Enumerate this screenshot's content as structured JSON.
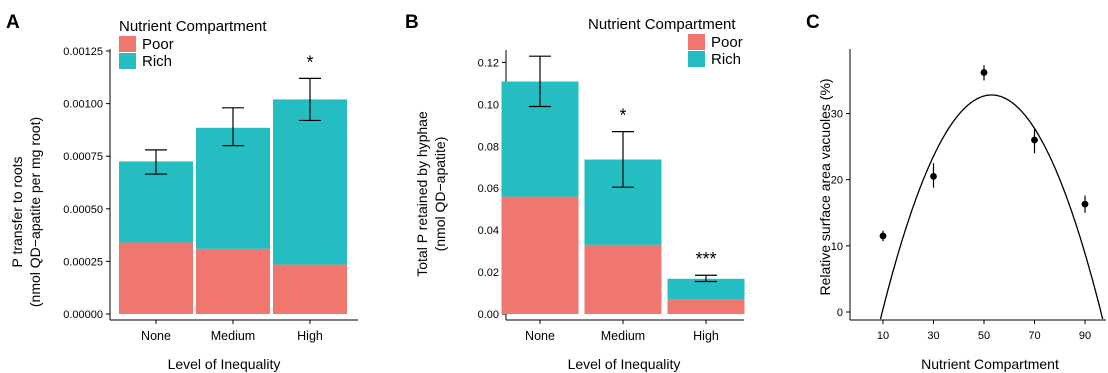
{
  "colors": {
    "poor": "#F07670",
    "rich": "#24BDC1",
    "axis": "#000000",
    "error": "#000000"
  },
  "panel_labels": [
    "A",
    "B",
    "C"
  ],
  "chart_data": [
    {
      "panel": "A",
      "type": "bar",
      "stacked": true,
      "categories": [
        "None",
        "Medium",
        "High"
      ],
      "series": [
        {
          "name": "Poor",
          "values": [
            0.00034,
            0.00031,
            0.000235
          ]
        },
        {
          "name": "Rich",
          "values": [
            0.000385,
            0.000575,
            0.000785
          ]
        }
      ],
      "totals": [
        0.000725,
        0.000885,
        0.00102
      ],
      "error_bars": [
        [
          0.000665,
          0.00078
        ],
        [
          0.0008,
          0.00098
        ],
        [
          0.00092,
          0.00112
        ]
      ],
      "significance": [
        "",
        "",
        "*"
      ],
      "legend_title": "Nutrient Compartment",
      "legend_items": [
        "Poor",
        "Rich"
      ],
      "legend_position": "top-left",
      "ylabel_lines": [
        "P transfer to roots",
        "(nmol QD−apatite per mg root)"
      ],
      "xlabel": "Level of Inequality",
      "yticks": [
        0,
        0.00025,
        0.0005,
        0.00075,
        0.001,
        0.00125
      ],
      "ytick_labels": [
        "0.00000",
        "0.00025",
        "0.00050",
        "0.00075",
        "0.00100",
        "0.00125"
      ],
      "ylim": [
        0,
        0.00125
      ]
    },
    {
      "panel": "B",
      "type": "bar",
      "stacked": true,
      "categories": [
        "None",
        "Medium",
        "High"
      ],
      "series": [
        {
          "name": "Poor",
          "values": [
            0.056,
            0.033,
            0.007
          ]
        },
        {
          "name": "Rich",
          "values": [
            0.0549,
            0.0407,
            0.0098
          ]
        }
      ],
      "totals": [
        0.1109,
        0.0737,
        0.0168
      ],
      "error_bars": [
        [
          0.099,
          0.123
        ],
        [
          0.0605,
          0.087
        ],
        [
          0.0155,
          0.0185
        ]
      ],
      "significance": [
        "",
        "*",
        "***"
      ],
      "legend_title": "Nutrient Compartment",
      "legend_items": [
        "Poor",
        "Rich"
      ],
      "legend_position": "top-right",
      "ylabel_lines": [
        "Total P retained by hyphae",
        "(nmol QD−apatite)"
      ],
      "xlabel": "Level of Inequality",
      "yticks": [
        0,
        0.02,
        0.04,
        0.06,
        0.08,
        0.1,
        0.12
      ],
      "ytick_labels": [
        "0.00",
        "0.02",
        "0.04",
        "0.06",
        "0.08",
        "0.10",
        "0.12"
      ],
      "ylim": [
        0,
        0.125
      ]
    },
    {
      "panel": "C",
      "type": "scatter",
      "points": [
        {
          "x": 10,
          "y": 11.5,
          "err": [
            10.7,
            12.3
          ]
        },
        {
          "x": 30,
          "y": 20.5,
          "err": [
            18.8,
            22.5
          ]
        },
        {
          "x": 50,
          "y": 36.2,
          "err": [
            35.0,
            37.3
          ]
        },
        {
          "x": 70,
          "y": 26.0,
          "err": [
            24.0,
            27.6
          ]
        },
        {
          "x": 90,
          "y": 16.3,
          "err": [
            15.0,
            17.6
          ]
        }
      ],
      "fit": {
        "type": "quadratic",
        "peak_x": 53,
        "peak_y": 32.8,
        "curvature": -0.0175
      },
      "xticks": [
        10,
        30,
        50,
        70,
        90
      ],
      "xtick_labels": [
        "10",
        "30",
        "50",
        "70",
        "90"
      ],
      "yticks": [
        0,
        10,
        20,
        30
      ],
      "ytick_labels": [
        "0",
        "10",
        "20",
        "30"
      ],
      "xlim": [
        -3,
        100
      ],
      "ylim": [
        -1.5,
        41
      ],
      "xlabel": "Nutrient Compartment",
      "ylabel": "Relative surface area vacuoles (%)"
    }
  ]
}
